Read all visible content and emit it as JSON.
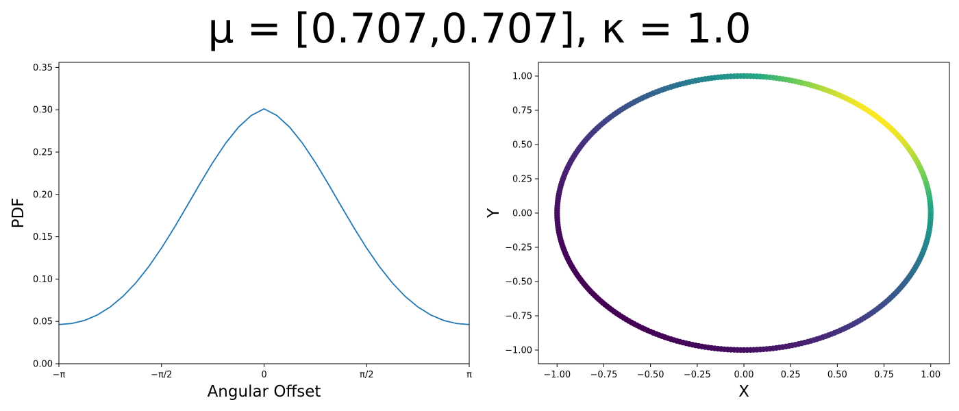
{
  "figure": {
    "title": "μ = [0.707,0.707],  κ = 1.0"
  },
  "chart_data": [
    {
      "type": "line",
      "xlabel": "Angular Offset",
      "ylabel": "PDF",
      "xlim": [
        -3.14159,
        3.14159
      ],
      "ylim": [
        0.0,
        0.356
      ],
      "xticks": [
        {
          "value": -3.14159,
          "label": "−π"
        },
        {
          "value": -1.5708,
          "label": "−π/2"
        },
        {
          "value": 0,
          "label": "0"
        },
        {
          "value": 1.5708,
          "label": "π/2"
        },
        {
          "value": 3.14159,
          "label": "π"
        }
      ],
      "yticks": [
        {
          "value": 0.0,
          "label": "0.00"
        },
        {
          "value": 0.05,
          "label": "0.05"
        },
        {
          "value": 0.1,
          "label": "0.10"
        },
        {
          "value": 0.15,
          "label": "0.15"
        },
        {
          "value": 0.2,
          "label": "0.20"
        },
        {
          "value": 0.25,
          "label": "0.25"
        },
        {
          "value": 0.3,
          "label": "0.30"
        },
        {
          "value": 0.35,
          "label": "0.35"
        }
      ],
      "series": [
        {
          "color": "#1f77b4",
          "x": [
            -3.1416,
            -2.9452,
            -2.7489,
            -2.5525,
            -2.3562,
            -2.1598,
            -1.9635,
            -1.7671,
            -1.5708,
            -1.3744,
            -1.1781,
            -0.9817,
            -0.7854,
            -0.589,
            -0.3927,
            -0.1963,
            0,
            0.1963,
            0.3927,
            0.589,
            0.7854,
            0.9817,
            1.1781,
            1.3744,
            1.5708,
            1.7671,
            1.9635,
            2.1598,
            2.3562,
            2.5525,
            2.7489,
            2.9452,
            3.1416
          ],
          "y": [
            0.0463,
            0.0475,
            0.0512,
            0.0576,
            0.067,
            0.0796,
            0.0955,
            0.1146,
            0.1366,
            0.1608,
            0.1865,
            0.2126,
            0.2377,
            0.2604,
            0.2793,
            0.2932,
            0.3011,
            0.2932,
            0.2793,
            0.2604,
            0.2377,
            0.2126,
            0.1865,
            0.1608,
            0.1366,
            0.1146,
            0.0955,
            0.0796,
            0.067,
            0.0576,
            0.0512,
            0.0475,
            0.0463
          ]
        }
      ]
    },
    {
      "type": "scatter",
      "xlabel": "X",
      "ylabel": "Y",
      "xlim": [
        -1.1,
        1.1
      ],
      "ylim": [
        -1.1,
        1.1
      ],
      "xticks": [
        {
          "value": -1.0,
          "label": "−1.00"
        },
        {
          "value": -0.75,
          "label": "−0.75"
        },
        {
          "value": -0.5,
          "label": "−0.50"
        },
        {
          "value": -0.25,
          "label": "−0.25"
        },
        {
          "value": 0.0,
          "label": "0.00"
        },
        {
          "value": 0.25,
          "label": "0.25"
        },
        {
          "value": 0.5,
          "label": "0.50"
        },
        {
          "value": 0.75,
          "label": "0.75"
        },
        {
          "value": 1.0,
          "label": "1.00"
        }
      ],
      "yticks": [
        {
          "value": -1.0,
          "label": "−1.00"
        },
        {
          "value": -0.75,
          "label": "−0.75"
        },
        {
          "value": -0.5,
          "label": "−0.50"
        },
        {
          "value": -0.25,
          "label": "−0.25"
        },
        {
          "value": 0.0,
          "label": "0.00"
        },
        {
          "value": 0.25,
          "label": "0.25"
        },
        {
          "value": 0.5,
          "label": "0.50"
        },
        {
          "value": 0.75,
          "label": "0.75"
        },
        {
          "value": 1.0,
          "label": "1.00"
        }
      ],
      "points": {
        "shape": "unit-circle",
        "mean_direction_deg": 45,
        "count": 360,
        "colormap": "viridis",
        "color_by": "pdf"
      }
    }
  ]
}
